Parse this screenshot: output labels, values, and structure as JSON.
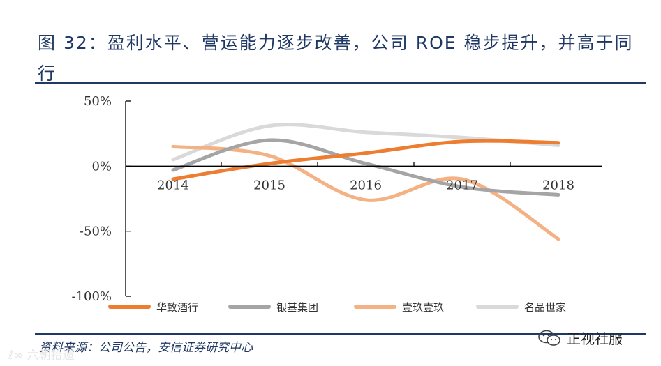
{
  "figure": {
    "title": "图 32：盈利水平、营运能力逐步改善，公司 ROE 稳步提升，并高于同行",
    "source": "资料来源：公司公告，安信证券研究中心"
  },
  "watermarks": {
    "left": "ℓ∞ 六朝拾遗",
    "right": "正视社服"
  },
  "chart_data": {
    "type": "line",
    "title": "",
    "xlabel": "",
    "ylabel": "",
    "categories": [
      "2014",
      "2015",
      "2016",
      "2017",
      "2018"
    ],
    "ylim": [
      -100,
      50
    ],
    "yticks": [
      50,
      0,
      -50,
      -100
    ],
    "ytick_labels": [
      "50%",
      "0%",
      "-50%",
      "-100%"
    ],
    "grid": false,
    "legend": "bottom",
    "smooth": true,
    "series": [
      {
        "name": "华致酒行",
        "color": "#ed7d31",
        "values": [
          -10,
          2,
          10,
          19,
          18
        ]
      },
      {
        "name": "银基集团",
        "color": "#a5a5a5",
        "values": [
          -3,
          20,
          2,
          -16,
          -22
        ]
      },
      {
        "name": "壹玖壹玖",
        "color": "#f4b183",
        "values": [
          15,
          8,
          -26,
          -10,
          -56
        ]
      },
      {
        "name": "名品世家",
        "color": "#d9d9d9",
        "values": [
          5,
          31,
          26,
          22,
          16
        ]
      }
    ]
  }
}
